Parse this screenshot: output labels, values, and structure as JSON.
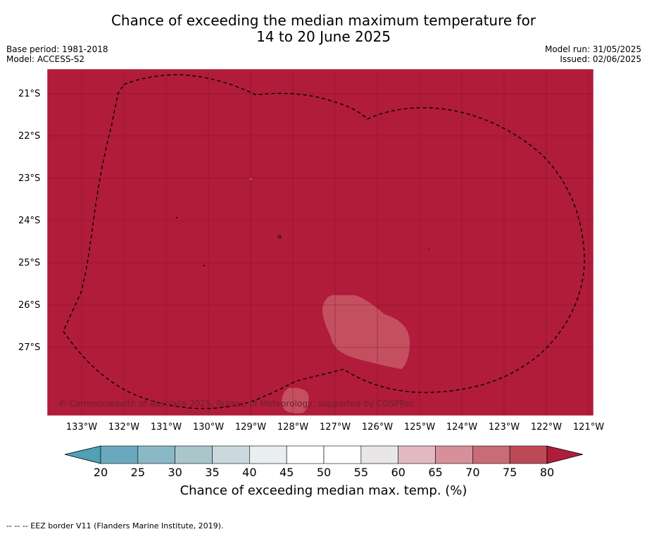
{
  "title": {
    "line1": "Chance of exceeding the median maximum temperature for",
    "line2": "14 to 20 June 2025"
  },
  "meta_left": {
    "base_period": "Base period: 1981-2018",
    "model": "Model: ACCESS-S2"
  },
  "meta_right": {
    "model_run": "Model run: 31/05/2025",
    "issued": "Issued: 02/06/2025"
  },
  "map": {
    "background_color": "#b01c3a",
    "latitude_labels": [
      "21°S",
      "22°S",
      "23°S",
      "24°S",
      "25°S",
      "26°S",
      "27°S"
    ],
    "longitude_labels": [
      "133°W",
      "132°W",
      "131°W",
      "130°W",
      "129°W",
      "128°W",
      "127°W",
      "126°W",
      "125°W",
      "124°W",
      "123°W",
      "122°W",
      "121°W"
    ],
    "copyright": "© Commonwealth of Australia 2025, Bureau of Meteorology, supported by COSPPac"
  },
  "colorbar": {
    "ticks": [
      "20",
      "25",
      "30",
      "35",
      "40",
      "45",
      "50",
      "55",
      "60",
      "65",
      "70",
      "75",
      "80"
    ],
    "colors": [
      "#6aa9bd",
      "#8bb8c6",
      "#a9c6cd",
      "#cad9dd",
      "#e9eef0",
      "#ffffff",
      "#ffffff",
      "#e8e6e6",
      "#e2b9bf",
      "#d69099",
      "#c86c77",
      "#bd4957"
    ],
    "under_color": "#4fa1b4",
    "over_color": "#b01c3a",
    "label": "Chance of exceeding median max. temp. (%)"
  },
  "footer": "--  --  -- EEZ border V11 (Flanders Marine Institute, 2019)."
}
